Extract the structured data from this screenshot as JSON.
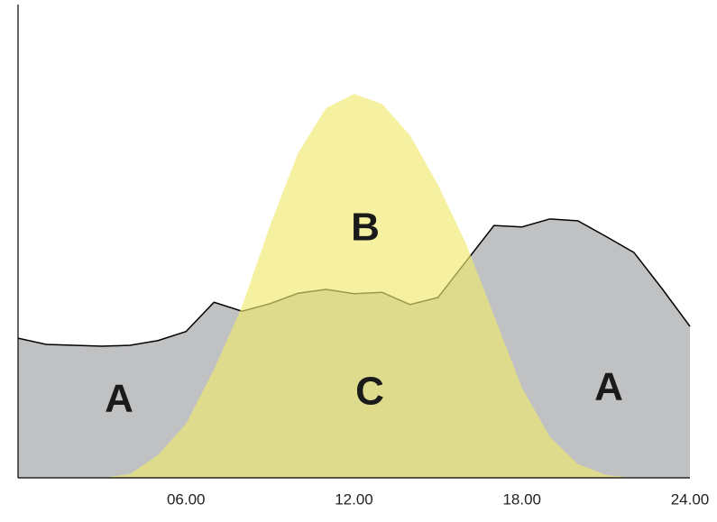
{
  "chart_data": {
    "type": "area",
    "x": [
      0,
      1,
      2,
      3,
      4,
      5,
      6,
      7,
      8,
      9,
      10,
      11,
      12,
      13,
      14,
      15,
      16,
      17,
      18,
      19,
      20,
      21,
      22,
      23,
      24
    ],
    "series": [
      {
        "color": "#c0c1c3",
        "outline": "#000000",
        "values": [
          29.5,
          28.2,
          28,
          27.8,
          28,
          29,
          30.9,
          37.1,
          35.2,
          36.8,
          39,
          39.8,
          38.9,
          39.2,
          36.6,
          38.1,
          45.7,
          53.3,
          53,
          54.7,
          54.3,
          51,
          47.6,
          40,
          32
        ]
      },
      {
        "color": "#efea6e",
        "values": [
          0,
          0,
          0,
          0,
          0.8,
          4.8,
          11.4,
          22.9,
          36.2,
          53.3,
          68.6,
          78.1,
          81.1,
          79,
          72.4,
          61.9,
          49.5,
          34.3,
          19,
          8.6,
          2.9,
          0.6,
          0,
          0,
          0
        ]
      }
    ],
    "annotations": [
      "A",
      "B",
      "C",
      "A"
    ],
    "xlim": [
      0,
      24
    ],
    "xticks": [
      {
        "value": 6,
        "label": "06.00"
      },
      {
        "value": 12,
        "label": "12.00"
      },
      {
        "value": 18,
        "label": "18.00"
      },
      {
        "value": 24,
        "label": "24.00"
      }
    ],
    "ylim": [
      0,
      100
    ]
  }
}
